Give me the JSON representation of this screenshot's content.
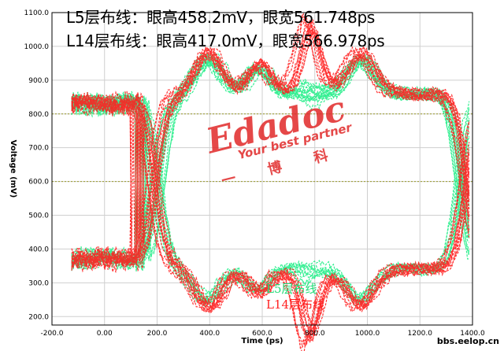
{
  "annotations": {
    "line1": "L5层布线：眼高458.2mV，眼宽561.748ps",
    "line2": "L14层布线：眼高417.0mV，眼宽566.978ps"
  },
  "watermark": {
    "brand": "Edadoc",
    "slogan": "Your best partner",
    "cn": "一 博 科"
  },
  "site": "bbs.eelop.cn",
  "colors": {
    "l5": "#22ee88",
    "l14": "#ff2020",
    "grid": "#cfcfcf",
    "dotted": "#9a9a2a",
    "frame": "#000000"
  },
  "chart_data": {
    "type": "line",
    "title": "",
    "xlabel": "Time (ps)",
    "ylabel": "Voltage (mV)",
    "xlim": [
      -200,
      1400
    ],
    "ylim": [
      175,
      1100
    ],
    "xticks": [
      -200,
      0,
      200,
      400,
      600,
      800,
      1000,
      1200,
      1400
    ],
    "yticks": [
      200,
      300,
      400,
      500,
      600,
      700,
      800,
      900,
      1000,
      1100
    ],
    "xtick_labels": [
      "-200.0",
      "0.00",
      "200.0",
      "400.0",
      "600.0",
      "800.0",
      "1000.0",
      "1200.0",
      "1400.0"
    ],
    "ytick_labels": [
      "200.0",
      "300.0",
      "400.0",
      "500.0",
      "600.0",
      "700.0",
      "800.0",
      "900.0",
      "1000.0",
      "1100.0"
    ],
    "grid": true,
    "reference_levels_mV": [
      800,
      600
    ],
    "series": [
      {
        "name": "L5层布线",
        "color": "#22ee88",
        "eye_height_mV": 458.2,
        "eye_width_ps": 561.748,
        "high_level_mV": 860,
        "low_level_mV": 340,
        "overshoot_mV": 960,
        "undershoot_mV": 250,
        "crossings_ps": [
          205,
          780
        ]
      },
      {
        "name": "L14层布线",
        "color": "#ff2020",
        "eye_height_mV": 417.0,
        "eye_width_ps": 566.978,
        "high_level_mV": 860,
        "low_level_mV": 340,
        "overshoot_mV": 980,
        "undershoot_mV": 230,
        "crossings_ps": [
          190,
          800
        ]
      }
    ]
  }
}
